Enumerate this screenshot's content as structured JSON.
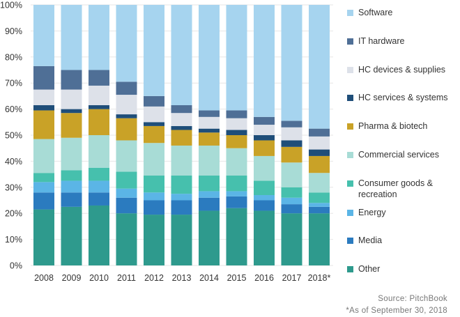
{
  "chart_data": {
    "type": "bar",
    "stacked": true,
    "categories": [
      "2008",
      "2009",
      "2010",
      "2011",
      "2012",
      "2013",
      "2014",
      "2015",
      "2016",
      "2017",
      "2018*"
    ],
    "y_ticks": [
      "0%",
      "10%",
      "20%",
      "30%",
      "40%",
      "50%",
      "60%",
      "70%",
      "80%",
      "90%",
      "100%"
    ],
    "ylim": [
      0,
      100
    ],
    "legend_position": "right",
    "series": [
      {
        "name": "Other",
        "color": "#2e9a8d",
        "values": [
          21.5,
          22.5,
          23,
          20,
          19.5,
          19.5,
          21,
          22,
          21,
          20,
          20
        ]
      },
      {
        "name": "Media",
        "color": "#2b7bbf",
        "values": [
          6.5,
          5.5,
          5,
          6,
          5.5,
          5.5,
          5,
          4.5,
          4,
          3.5,
          2.5
        ]
      },
      {
        "name": "Energy",
        "color": "#5bb5e6",
        "values": [
          4,
          4.5,
          4.5,
          3.5,
          3,
          2.5,
          2.5,
          2,
          2,
          2.5,
          1.5
        ]
      },
      {
        "name": "Consumer goods & recreation",
        "color": "#46c0ad",
        "values": [
          3.5,
          4,
          5,
          6.5,
          6.5,
          7,
          6,
          6,
          5.5,
          4,
          4
        ]
      },
      {
        "name": "Commercial services",
        "color": "#a8dcd6",
        "values": [
          13,
          12.5,
          12.5,
          12,
          12.5,
          11.5,
          11.5,
          10.5,
          9.5,
          9.5,
          7.5
        ]
      },
      {
        "name": "Pharma & biotech",
        "color": "#c9a227",
        "values": [
          11,
          9.5,
          10,
          8.5,
          6.5,
          6,
          5,
          5,
          6,
          6,
          6.5
        ]
      },
      {
        "name": "HC services & systems",
        "color": "#1f4e79",
        "values": [
          2,
          1.5,
          1.5,
          1.5,
          1.5,
          1.5,
          1.5,
          2,
          2,
          2.5,
          2.5
        ]
      },
      {
        "name": "HC devices & supplies",
        "color": "#dde1e9",
        "values": [
          6,
          7.5,
          7.5,
          7.5,
          6,
          5,
          4.5,
          4.5,
          4,
          5,
          5
        ]
      },
      {
        "name": "IT hardware",
        "color": "#4f6f96",
        "values": [
          9,
          7.5,
          6,
          5,
          4,
          3,
          2.5,
          3,
          3,
          2.5,
          3
        ]
      },
      {
        "name": "Software",
        "color": "#a6d4ef",
        "values": [
          23.5,
          25,
          25,
          29.5,
          35,
          38.5,
          40.5,
          40.5,
          43,
          44.5,
          47.5
        ]
      }
    ]
  },
  "source": "Source: PitchBook",
  "note": "*As of September 30, 2018"
}
